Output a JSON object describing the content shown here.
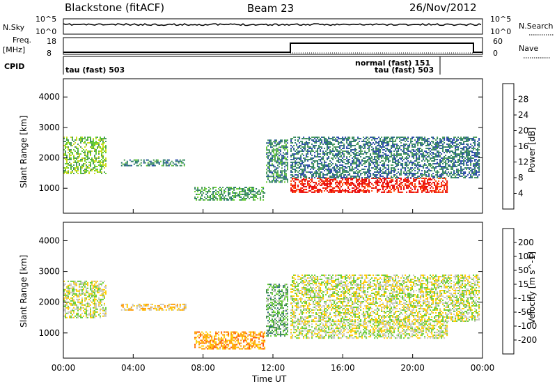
{
  "header": {
    "station": "Blackstone (fitACF)",
    "beam": "Beam 23",
    "date": "26/Nov/2012"
  },
  "panels": {
    "sky": {
      "left_label": "N.Sky",
      "right_label": "N.Search",
      "left_ticks": [
        "10^5",
        "10^0"
      ],
      "right_ticks": [
        "10^5",
        "10^0"
      ]
    },
    "freq": {
      "left_label_1": "Freq.",
      "left_label_2": "[MHz]",
      "right_label": "Nave",
      "left_ticks": [
        "18",
        "8"
      ],
      "right_ticks": [
        "60",
        "0"
      ]
    },
    "cpid": {
      "label": "CPID",
      "entries": [
        "tau (fast) 503",
        "normal (fast) 151",
        "tau (fast) 503"
      ]
    }
  },
  "chart_data": [
    {
      "type": "heatmap",
      "name": "power",
      "ylabel": "Slant Range [km]",
      "xlabel": "Time UT",
      "x_ticks": [
        "00:00",
        "04:00",
        "08:00",
        "12:00",
        "16:00",
        "20:00",
        "00:00"
      ],
      "x_range_hours": [
        0,
        24
      ],
      "y_ticks": [
        1000,
        2000,
        3000,
        4000
      ],
      "y_range_km": [
        180,
        4600
      ],
      "colorbar": {
        "label": "Power [dB]",
        "ticks": [
          4,
          8,
          12,
          16,
          20,
          24,
          28
        ],
        "colors": [
          "#1a1aff",
          "#2a4aa8",
          "#2a7a6a",
          "#4a9a5a",
          "#66cc33",
          "#ccdd22",
          "#ffcc00",
          "#ff8800",
          "#ff4400",
          "#e80000"
        ]
      },
      "regions": [
        {
          "t0": 0.0,
          "t1": 2.4,
          "r0": 1500,
          "r1": 2700,
          "level": 0.45
        },
        {
          "t0": 3.3,
          "t1": 7.0,
          "r0": 1750,
          "r1": 1950,
          "level": 0.3
        },
        {
          "t0": 7.5,
          "t1": 11.5,
          "r0": 600,
          "r1": 1050,
          "level": 0.35
        },
        {
          "t0": 11.6,
          "t1": 12.8,
          "r0": 1200,
          "r1": 2600,
          "level": 0.3
        },
        {
          "t0": 13.0,
          "t1": 22.0,
          "r0": 850,
          "r1": 1350,
          "level": 0.95
        },
        {
          "t0": 13.0,
          "t1": 23.8,
          "r0": 1350,
          "r1": 2700,
          "level": 0.25
        }
      ]
    },
    {
      "type": "heatmap",
      "name": "velocity",
      "ylabel": "Slant Range [km]",
      "xlabel": "Time UT",
      "x_ticks": [
        "00:00",
        "04:00",
        "08:00",
        "12:00",
        "16:00",
        "20:00",
        "00:00"
      ],
      "x_range_hours": [
        0,
        24
      ],
      "y_ticks": [
        1000,
        2000,
        3000,
        4000
      ],
      "y_range_km": [
        180,
        4600
      ],
      "colorbar": {
        "label": "Velocity [m s^-1]",
        "ticks": [
          200,
          100,
          50,
          15,
          -15,
          -50,
          -100,
          -200
        ],
        "colors": [
          "#1a3aa0",
          "#2a6a7a",
          "#3a8a4a",
          "#66cc33",
          "#c8c8c0",
          "#ffcc00",
          "#ff9900",
          "#ff5500",
          "#e80000"
        ]
      },
      "regions": [
        {
          "t0": 0.0,
          "t1": 2.4,
          "r0": 1500,
          "r1": 2700,
          "level": 0.5
        },
        {
          "t0": 3.3,
          "t1": 7.0,
          "r0": 1750,
          "r1": 1950,
          "level": 0.6
        },
        {
          "t0": 7.5,
          "t1": 11.5,
          "r0": 500,
          "r1": 1050,
          "level": 0.7
        },
        {
          "t0": 11.6,
          "t1": 12.8,
          "r0": 900,
          "r1": 2600,
          "level": 0.35
        },
        {
          "t0": 13.0,
          "t1": 22.0,
          "r0": 850,
          "r1": 1400,
          "level": 0.5
        },
        {
          "t0": 13.0,
          "t1": 23.8,
          "r0": 1400,
          "r1": 2900,
          "level": 0.5
        }
      ]
    }
  ]
}
